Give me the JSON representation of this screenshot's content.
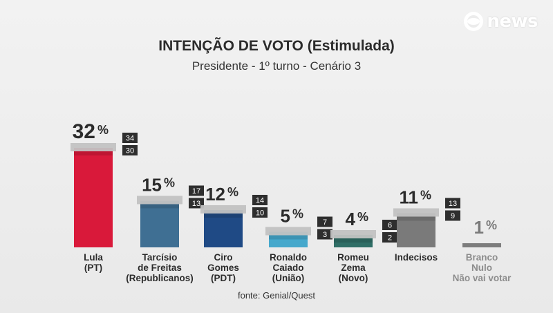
{
  "header": {
    "title": "INTENÇÃO DE VOTO (Estimulada)",
    "subtitle": "Presidente - 1º turno - Cenário 3",
    "brand": "news"
  },
  "source": "fonte: Genial/Quest",
  "colors": {
    "lula": "#d9193a",
    "tarcisio": "#3f6f93",
    "ciro": "#1f4a85",
    "caiado": "#45a8cc",
    "zema": "#2f6e66",
    "indecisos": "#7a7a7a",
    "branco": "#7d7d7d",
    "margin_band": "#c2c2c2",
    "margin_box": "#2e2e2e"
  },
  "chart_data": {
    "type": "bar",
    "title": "INTENÇÃO DE VOTO (Estimulada)",
    "subtitle": "Presidente - 1º turno - Cenário 3",
    "unit": "%",
    "ylim": [
      0,
      32
    ],
    "bars": [
      {
        "label": [
          "Lula",
          "(PT)"
        ],
        "value": 32,
        "value_label": "32",
        "upper": "34",
        "lower": "30",
        "color": "#d9193a",
        "error_band": true
      },
      {
        "label": [
          "Tarcísio",
          "de Freitas",
          "(Republicanos)"
        ],
        "value": 15,
        "value_label": "15",
        "upper": "17",
        "lower": "13",
        "color": "#3f6f93",
        "error_band": true
      },
      {
        "label": [
          "Ciro",
          "Gomes",
          "(PDT)"
        ],
        "value": 12,
        "value_label": "12",
        "upper": "14",
        "lower": "10",
        "color": "#1f4a85",
        "error_band": true
      },
      {
        "label": [
          "Ronaldo",
          "Caiado",
          "(União)"
        ],
        "value": 5,
        "value_label": "5",
        "upper": "7",
        "lower": "3",
        "color": "#45a8cc",
        "error_band": true
      },
      {
        "label": [
          "Romeu",
          "Zema",
          "(Novo)"
        ],
        "value": 4,
        "value_label": "4",
        "upper": "6",
        "lower": "2",
        "color": "#2f6e66",
        "error_band": true
      },
      {
        "label": [
          "Indecisos"
        ],
        "value": 11,
        "value_label": "11",
        "upper": "13",
        "lower": "9",
        "color": "#7a7a7a",
        "error_band": true
      },
      {
        "label": [
          "Branco",
          "Nulo",
          "Não vai votar"
        ],
        "value": 1,
        "value_label": "1",
        "upper": "",
        "lower": "",
        "color": "#7d7d7d",
        "error_band": false,
        "muted": true
      }
    ]
  }
}
